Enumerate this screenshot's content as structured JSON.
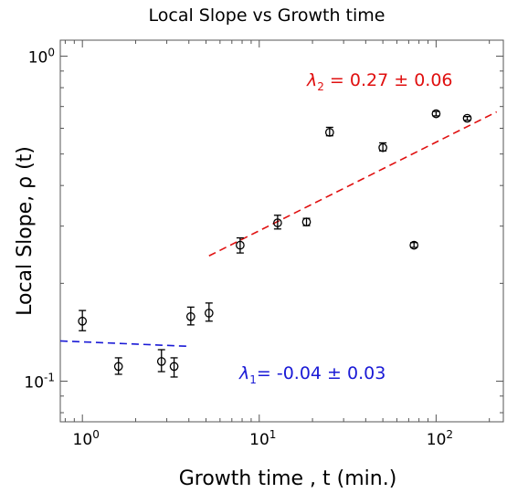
{
  "chart_data": {
    "type": "scatter",
    "title": "Local Slope vs Growth time",
    "xlabel": "Growth time , t (min.)",
    "ylabel": "Local Slope, ρ (t)",
    "x_scale": "log",
    "y_scale": "log",
    "xlim": [
      0.75,
      240
    ],
    "ylim": [
      0.075,
      1.12
    ],
    "grid": false,
    "x_ticks": [
      {
        "value": 1,
        "base": "10",
        "exp": "0"
      },
      {
        "value": 10,
        "base": "10",
        "exp": "1"
      },
      {
        "value": 100,
        "base": "10",
        "exp": "2"
      }
    ],
    "y_ticks": [
      {
        "value": 0.1,
        "base": "10",
        "exp": "-1"
      },
      {
        "value": 1,
        "base": "10",
        "exp": "0"
      }
    ],
    "points": [
      {
        "x": 1.0,
        "y": 0.153,
        "err_low": 0.143,
        "err_high": 0.165
      },
      {
        "x": 1.6,
        "y": 0.111,
        "err_low": 0.105,
        "err_high": 0.118
      },
      {
        "x": 2.8,
        "y": 0.115,
        "err_low": 0.107,
        "err_high": 0.125
      },
      {
        "x": 3.3,
        "y": 0.111,
        "err_low": 0.103,
        "err_high": 0.118
      },
      {
        "x": 4.1,
        "y": 0.158,
        "err_low": 0.149,
        "err_high": 0.169
      },
      {
        "x": 5.2,
        "y": 0.162,
        "err_low": 0.153,
        "err_high": 0.174
      },
      {
        "x": 7.8,
        "y": 0.262,
        "err_low": 0.248,
        "err_high": 0.276
      },
      {
        "x": 12.7,
        "y": 0.307,
        "err_low": 0.294,
        "err_high": 0.324
      },
      {
        "x": 18.5,
        "y": 0.309,
        "err_low": 0.301,
        "err_high": 0.317
      },
      {
        "x": 25.0,
        "y": 0.583,
        "err_low": 0.569,
        "err_high": 0.604
      },
      {
        "x": 50.0,
        "y": 0.523,
        "err_low": 0.511,
        "err_high": 0.541
      },
      {
        "x": 75.0,
        "y": 0.262,
        "err_low": 0.258,
        "err_high": 0.267
      },
      {
        "x": 100.0,
        "y": 0.665,
        "err_low": 0.655,
        "err_high": 0.676
      },
      {
        "x": 150.0,
        "y": 0.644,
        "err_low": 0.635,
        "err_high": 0.652
      }
    ],
    "fits": [
      {
        "name": "lambda1",
        "color": "#1a1ad6",
        "x": [
          0.75,
          4.0
        ],
        "y": [
          0.133,
          0.128
        ]
      },
      {
        "name": "lambda2",
        "color": "#e01010",
        "x": [
          5.2,
          220.0
        ],
        "y": [
          0.243,
          0.674
        ]
      }
    ],
    "annotations": [
      {
        "symbol": "λ",
        "sub": "1",
        "text": "= -0.04   ± 0.03",
        "color": "#1a1ad6"
      },
      {
        "symbol": "λ",
        "sub": "2",
        "text": " = 0.27 ± 0.06",
        "color": "#e01010"
      }
    ]
  }
}
